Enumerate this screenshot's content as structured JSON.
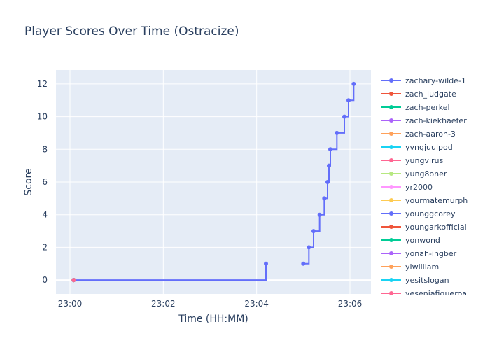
{
  "chart_data": {
    "type": "line",
    "line_shape": "step",
    "title": "Player Scores Over Time (Ostracize)",
    "xlabel": "Time (HH:MM)",
    "ylabel": "Score",
    "x_ticks": [
      "23:00",
      "23:02",
      "23:04",
      "23:06"
    ],
    "x_tick_minutes": [
      0,
      2,
      4,
      6
    ],
    "x_range_minutes": [
      -0.3,
      6.45
    ],
    "ylim": [
      -0.85,
      12.85
    ],
    "y_ticks": [
      0,
      2,
      4,
      6,
      8,
      10,
      12
    ],
    "grid": true,
    "plot_background": "#e5ecf6",
    "legend_placement": "right",
    "series": [
      {
        "name": "zachary-wilde-1",
        "color": "#636efa",
        "segments": [
          {
            "x": [
              0.08,
              4.2
            ],
            "y": [
              0,
              1
            ]
          },
          {
            "x": [
              5.0,
              5.12,
              5.22,
              5.35,
              5.45,
              5.52,
              5.55,
              5.58,
              5.72,
              5.88,
              5.97,
              6.08
            ],
            "y": [
              1,
              2,
              3,
              4,
              5,
              6,
              7,
              8,
              9,
              10,
              11,
              12
            ]
          }
        ]
      },
      {
        "name": "zach_ludgate",
        "color": "#ef553b",
        "segments": [
          {
            "x": [
              0.08
            ],
            "y": [
              0
            ]
          }
        ]
      },
      {
        "name": "zach-perkel",
        "color": "#00cc96",
        "segments": [
          {
            "x": [
              0.08
            ],
            "y": [
              0
            ]
          }
        ]
      },
      {
        "name": "zach-kiekhaefer",
        "color": "#ab63fa",
        "segments": [
          {
            "x": [
              0.08
            ],
            "y": [
              0
            ]
          }
        ]
      },
      {
        "name": "zach-aaron-3",
        "color": "#ffa15a",
        "segments": [
          {
            "x": [
              0.08
            ],
            "y": [
              0
            ]
          }
        ]
      },
      {
        "name": "yvngjuulpod",
        "color": "#19d3f3",
        "segments": [
          {
            "x": [
              0.08
            ],
            "y": [
              0
            ]
          }
        ]
      },
      {
        "name": "yungvirus",
        "color": "#ff6692",
        "segments": [
          {
            "x": [
              0.08
            ],
            "y": [
              0
            ]
          }
        ]
      },
      {
        "name": "yung8oner",
        "color": "#b6e880",
        "segments": [
          {
            "x": [
              0.08
            ],
            "y": [
              0
            ]
          }
        ]
      },
      {
        "name": "yr2000",
        "color": "#ff97ff",
        "segments": [
          {
            "x": [
              0.08
            ],
            "y": [
              0
            ]
          }
        ]
      },
      {
        "name": "yourmatemurph",
        "color": "#fecb52",
        "segments": [
          {
            "x": [
              0.08
            ],
            "y": [
              0
            ]
          }
        ]
      },
      {
        "name": "younggcorey",
        "color": "#636efa",
        "segments": [
          {
            "x": [
              0.08
            ],
            "y": [
              0
            ]
          }
        ]
      },
      {
        "name": "youngarkofficial",
        "color": "#ef553b",
        "segments": [
          {
            "x": [
              0.08
            ],
            "y": [
              0
            ]
          }
        ]
      },
      {
        "name": "yonwond",
        "color": "#00cc96",
        "segments": [
          {
            "x": [
              0.08
            ],
            "y": [
              0
            ]
          }
        ]
      },
      {
        "name": "yonah-ingber",
        "color": "#ab63fa",
        "segments": [
          {
            "x": [
              0.08
            ],
            "y": [
              0
            ]
          }
        ]
      },
      {
        "name": "yiwilliam",
        "color": "#ffa15a",
        "segments": [
          {
            "x": [
              0.08
            ],
            "y": [
              0
            ]
          }
        ]
      },
      {
        "name": "yesitslogan",
        "color": "#19d3f3",
        "segments": [
          {
            "x": [
              0.08
            ],
            "y": [
              0
            ]
          }
        ]
      },
      {
        "name": "yeseniafigueroa",
        "color": "#ff6692",
        "segments": [
          {
            "x": [
              0.08
            ],
            "y": [
              0
            ]
          }
        ]
      }
    ]
  }
}
